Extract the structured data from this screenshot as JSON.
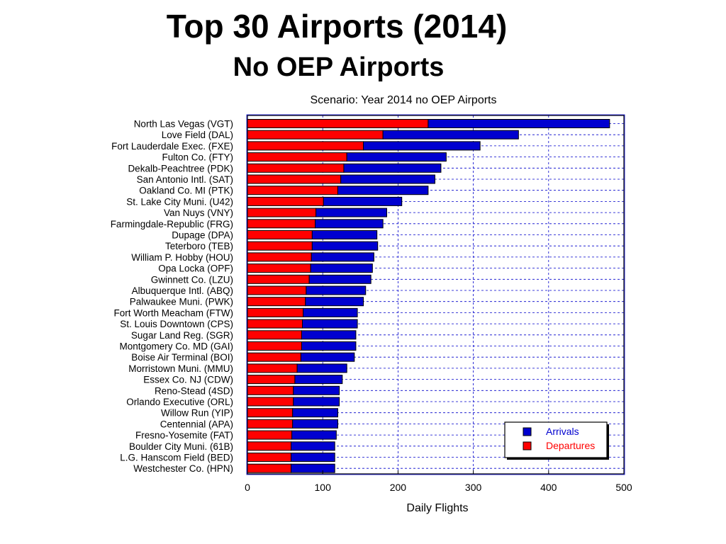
{
  "slide": {
    "title": "Top 30 Airports (2014)",
    "subtitle": "No OEP Airports"
  },
  "chart_data": {
    "type": "bar",
    "orientation": "horizontal",
    "stacked": true,
    "title": "Scenario: Year 2014 no OEP Airports",
    "xlabel": "Daily Flights",
    "ylabel": "",
    "xlim": [
      0,
      500
    ],
    "xticks": [
      0,
      100,
      200,
      300,
      400,
      500
    ],
    "grid": true,
    "legend_position": "bottom-right",
    "categories": [
      "North Las Vegas (VGT)",
      "Love Field (DAL)",
      "Fort Lauderdale Exec. (FXE)",
      "Fulton Co. (FTY)",
      "Dekalb-Peachtree (PDK)",
      "San Antonio Intl. (SAT)",
      "Oakland Co. MI (PTK)",
      "St. Lake City Muni. (U42)",
      "Van Nuys (VNY)",
      "Farmingdale-Republic (FRG)",
      "Dupage (DPA)",
      "Teterboro (TEB)",
      "William P. Hobby (HOU)",
      "Opa Locka (OPF)",
      "Gwinnett Co. (LZU)",
      "Albuquerque Intl. (ABQ)",
      "Palwaukee Muni. (PWK)",
      "Fort Worth Meacham (FTW)",
      "St. Louis Downtown (CPS)",
      "Sugar Land Reg. (SGR)",
      "Montgomery Co. MD (GAI)",
      "Boise Air Terminal (BOI)",
      "Morristown Muni. (MMU)",
      "Essex Co. NJ (CDW)",
      "Reno-Stead (4SD)",
      "Orlando Executive (ORL)",
      "Willow Run (YIP)",
      "Centennial (APA)",
      "Fresno-Yosemite (FAT)",
      "Boulder City Muni. (61B)",
      "L.G. Hanscom Field (BED)",
      "Westchester Co. (HPN)"
    ],
    "series": [
      {
        "name": "Departures",
        "color": "#ff0000",
        "values": [
          240,
          180,
          154,
          132,
          128,
          124,
          120,
          101,
          91,
          90,
          86,
          86,
          85,
          84,
          82,
          78,
          77,
          74,
          73,
          72,
          72,
          71,
          66,
          63,
          61,
          61,
          60,
          60,
          59,
          58,
          58,
          58
        ]
      },
      {
        "name": "Arrivals",
        "color": "#0000d0",
        "values": [
          241,
          180,
          155,
          132,
          129,
          125,
          120,
          104,
          94,
          90,
          86,
          87,
          83,
          82,
          82,
          79,
          77,
          72,
          73,
          72,
          72,
          71,
          66,
          63,
          61,
          61,
          60,
          60,
          59,
          58,
          58,
          58
        ]
      }
    ],
    "legend": [
      {
        "label": "Arrivals",
        "color": "#0000d0"
      },
      {
        "label": "Departures",
        "color": "#ff0000"
      }
    ]
  }
}
